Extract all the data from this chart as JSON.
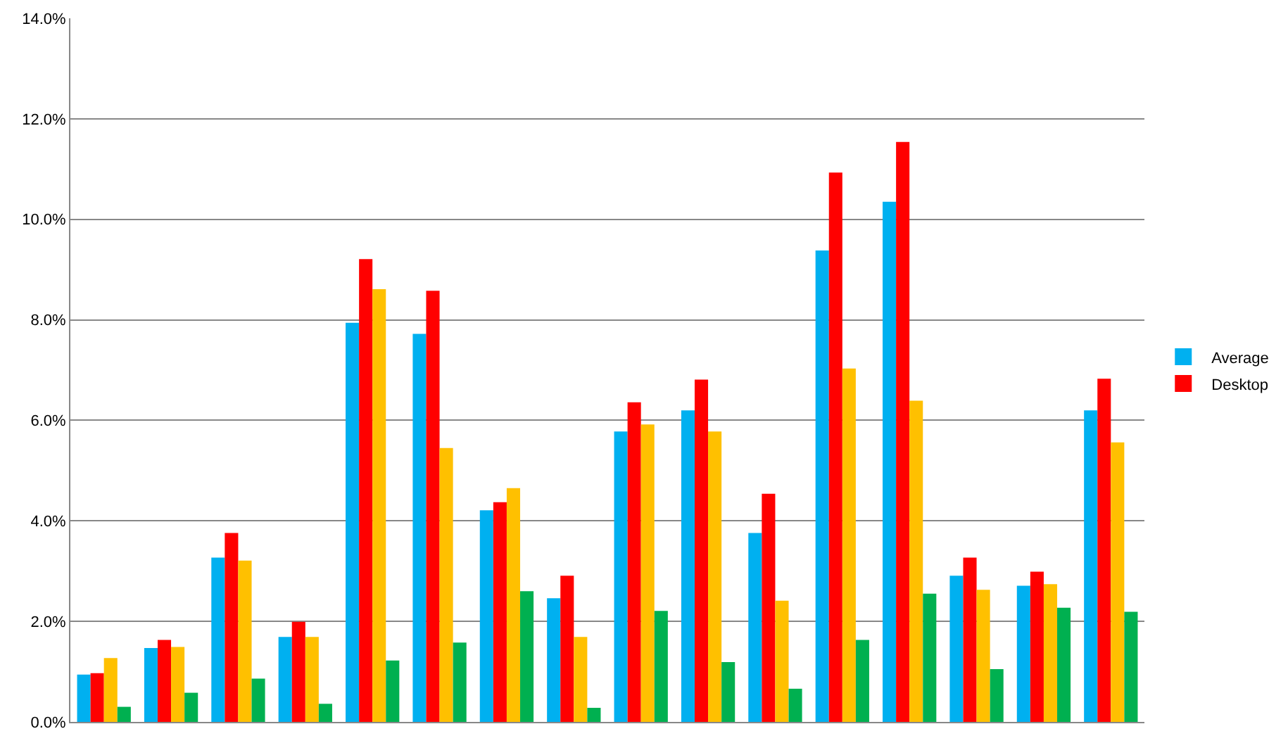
{
  "chart_data": {
    "type": "bar",
    "categories": [
      null,
      null,
      null,
      null,
      null,
      null,
      null,
      null,
      null,
      null,
      null,
      null,
      null,
      null,
      null,
      null
    ],
    "series": [
      {
        "name": "Average",
        "color": "#00b0f0",
        "values": [
          0.94,
          1.47,
          3.27,
          1.69,
          7.94,
          7.72,
          4.21,
          2.46,
          5.78,
          6.2,
          3.76,
          9.38,
          10.35,
          2.91,
          2.71,
          6.2
        ]
      },
      {
        "name": "Desktop",
        "color": "#ff0000",
        "values": [
          0.97,
          1.63,
          3.76,
          1.99,
          9.21,
          8.58,
          4.37,
          2.91,
          6.36,
          6.81,
          4.54,
          10.93,
          11.54,
          3.27,
          2.99,
          6.83
        ]
      },
      {
        "color": "#ffc000",
        "values": [
          1.27,
          1.49,
          3.21,
          1.69,
          8.61,
          5.45,
          4.65,
          1.69,
          5.92,
          5.78,
          2.41,
          7.03,
          6.39,
          2.63,
          2.74,
          5.56
        ]
      },
      {
        "color": "#00b050",
        "values": [
          0.3,
          0.58,
          0.86,
          0.36,
          1.22,
          1.58,
          2.6,
          0.28,
          2.21,
          1.19,
          0.66,
          1.63,
          2.55,
          1.05,
          2.27,
          2.19
        ]
      }
    ],
    "ylim": [
      0,
      14
    ],
    "yticks": [
      {
        "value": 0,
        "label": "0.0%"
      },
      {
        "value": 2,
        "label": "2.0%"
      },
      {
        "value": 4,
        "label": "4.0%"
      },
      {
        "value": 6,
        "label": "6.0%"
      },
      {
        "value": 8,
        "label": "8.0%"
      },
      {
        "value": 10,
        "label": "10.0%"
      },
      {
        "value": 12,
        "label": "12.0%"
      },
      {
        "value": 14,
        "label": "14.0%"
      }
    ],
    "grid": "y",
    "legend": "right"
  }
}
